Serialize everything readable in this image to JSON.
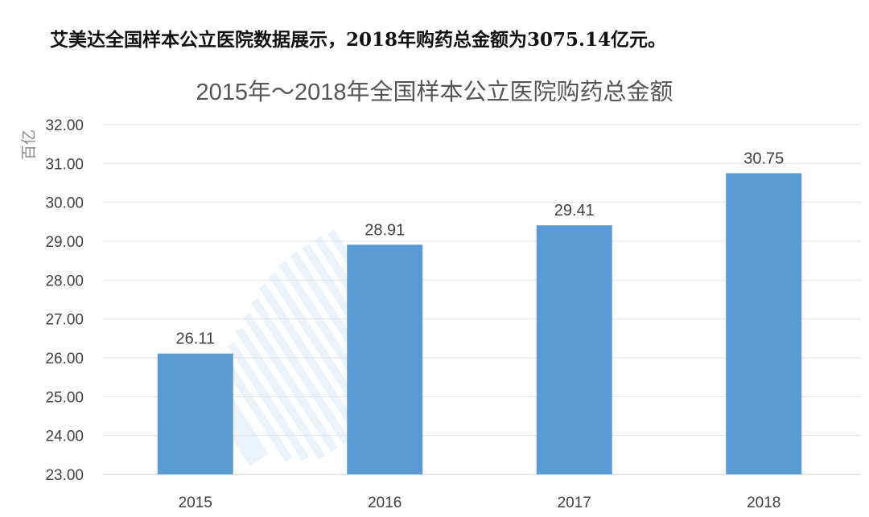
{
  "headline": "艾美达全国样本公立医院数据展示，2018年购药总金额为3075.14亿元。",
  "chart_data": {
    "type": "bar",
    "title": "2015年～2018年全国样本公立医院购药总金额",
    "ylabel": "百亿",
    "xlabel": "",
    "categories": [
      "2015",
      "2016",
      "2017",
      "2018"
    ],
    "values": [
      26.11,
      28.91,
      29.41,
      30.75
    ],
    "data_labels": [
      "26.11",
      "28.91",
      "29.41",
      "30.75"
    ],
    "ylim": [
      23,
      32
    ],
    "yticks": [
      "23.00",
      "24.00",
      "25.00",
      "26.00",
      "27.00",
      "28.00",
      "29.00",
      "30.00",
      "31.00",
      "32.00"
    ],
    "grid": true,
    "legend": "none",
    "bar_color": "#5b9bd5"
  }
}
